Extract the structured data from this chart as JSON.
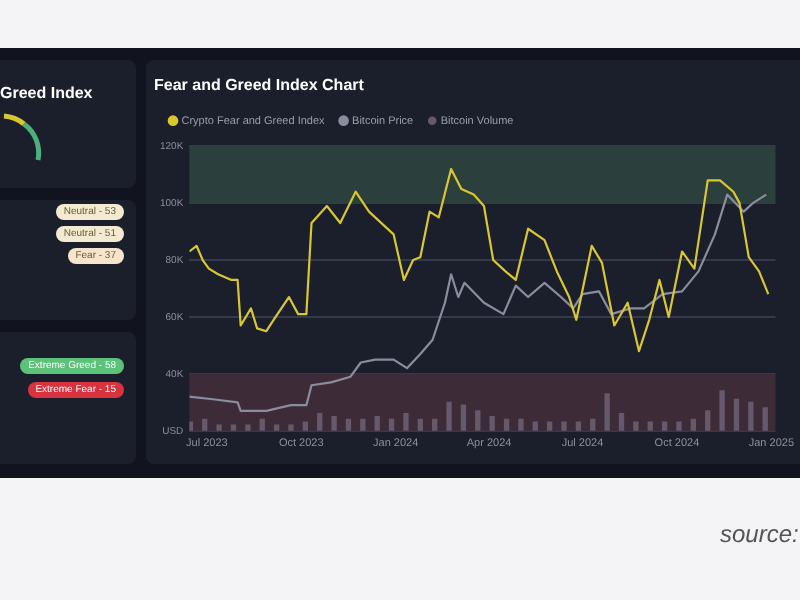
{
  "chart_data": [
    {
      "type": "other",
      "title": "Greed Index",
      "annotations": [
        "Neutral - 53",
        "Neutral - 51",
        "Fear - 37",
        "Extreme Greed - 58",
        "Extreme Fear - 15"
      ]
    },
    {
      "type": "line",
      "title": "Fear and Greed Index Chart",
      "legend": "top left",
      "grid": "y",
      "marker": "none",
      "xlim": [
        "2023-06-14",
        "2025-01-05"
      ],
      "xticks": [
        {
          "value": "2023-07-01",
          "label": "Jul 2023"
        },
        {
          "value": "2023-10-01",
          "label": "Oct 2023"
        },
        {
          "value": "2024-01-01",
          "label": "Jan 2024"
        },
        {
          "value": "2024-04-01",
          "label": "Apr 2024"
        },
        {
          "value": "2024-07-01",
          "label": "Jul 2024"
        },
        {
          "value": "2024-10-01",
          "label": "Oct 2024"
        },
        {
          "value": "2025-01-01",
          "label": "Jan 2025"
        }
      ],
      "ylim": [
        20000,
        120000
      ],
      "yticks": [
        {
          "value": 20000,
          "label": "USD"
        },
        {
          "value": 40000,
          "label": "40K"
        },
        {
          "value": 60000,
          "label": "60K"
        },
        {
          "value": 80000,
          "label": "80K"
        },
        {
          "value": 100000,
          "label": "100K"
        },
        {
          "value": 120000,
          "label": "120K"
        }
      ],
      "bands": [
        {
          "axis": "y",
          "from": 100000,
          "to": 120000,
          "color": "#2b3f3c"
        },
        {
          "axis": "y",
          "from": 20000,
          "to": 40000,
          "color": "#3d2c37"
        }
      ],
      "series": [
        {
          "name": "Crypto Fear and Greed Index",
          "type": "line",
          "color": "#d9c72f",
          "x": [
            "2023-06-14",
            "2023-06-21",
            "2023-06-27",
            "2023-07-03",
            "2023-07-12",
            "2023-07-25",
            "2023-07-31",
            "2023-08-03",
            "2023-08-13",
            "2023-08-19",
            "2023-08-28",
            "2023-09-06",
            "2023-09-19",
            "2023-09-28",
            "2023-10-06",
            "2023-10-11",
            "2023-10-26",
            "2023-11-08",
            "2023-11-23",
            "2023-12-06",
            "2023-12-21",
            "2023-12-30",
            "2024-01-09",
            "2024-01-18",
            "2024-01-25",
            "2024-02-03",
            "2024-02-12",
            "2024-02-24",
            "2024-03-05",
            "2024-03-17",
            "2024-03-27",
            "2024-04-05",
            "2024-04-17",
            "2024-04-27",
            "2024-05-09",
            "2024-05-25",
            "2024-06-06",
            "2024-06-18",
            "2024-06-25",
            "2024-07-10",
            "2024-07-20",
            "2024-08-01",
            "2024-08-14",
            "2024-08-25",
            "2024-09-04",
            "2024-09-14",
            "2024-09-23",
            "2024-10-06",
            "2024-10-18",
            "2024-10-31",
            "2024-11-12",
            "2024-11-25",
            "2024-12-01",
            "2024-12-10",
            "2024-12-20",
            "2024-12-29"
          ],
          "values": [
            83000,
            85000,
            80000,
            77000,
            75000,
            73000,
            73000,
            57000,
            63000,
            56000,
            55000,
            60000,
            67000,
            61000,
            61000,
            93000,
            99000,
            93000,
            104000,
            97000,
            92000,
            89000,
            73000,
            80000,
            81000,
            97000,
            95000,
            112000,
            105000,
            103000,
            99000,
            80000,
            76000,
            73000,
            91000,
            87000,
            76000,
            67000,
            59000,
            85000,
            79000,
            57000,
            65000,
            48000,
            59000,
            73000,
            60000,
            83000,
            77000,
            108000,
            108000,
            104000,
            100000,
            81000,
            76000,
            68000
          ]
        },
        {
          "name": "Bitcoin Price",
          "type": "line",
          "color": "#8b8c9f",
          "x": [
            "2023-06-14",
            "2023-07-09",
            "2023-07-31",
            "2023-08-03",
            "2023-08-28",
            "2023-09-21",
            "2023-10-06",
            "2023-10-11",
            "2023-10-30",
            "2023-11-18",
            "2023-11-28",
            "2023-12-12",
            "2023-12-30",
            "2024-01-12",
            "2024-01-25",
            "2024-02-06",
            "2024-02-18",
            "2024-02-24",
            "2024-03-02",
            "2024-03-08",
            "2024-03-27",
            "2024-04-15",
            "2024-04-27",
            "2024-05-09",
            "2024-05-25",
            "2024-06-10",
            "2024-06-22",
            "2024-07-01",
            "2024-07-17",
            "2024-07-29",
            "2024-08-17",
            "2024-08-30",
            "2024-09-17",
            "2024-10-06",
            "2024-10-22",
            "2024-11-07",
            "2024-11-19",
            "2024-12-05",
            "2024-12-14",
            "2024-12-27"
          ],
          "values": [
            32000,
            31000,
            30000,
            27000,
            27000,
            29000,
            29000,
            36000,
            37000,
            39000,
            44000,
            45000,
            45000,
            42000,
            47000,
            52000,
            65000,
            75000,
            67000,
            72000,
            65000,
            61000,
            71000,
            67000,
            72000,
            67000,
            63000,
            68000,
            69000,
            61000,
            63000,
            63000,
            68000,
            69000,
            76000,
            89000,
            103000,
            97000,
            100000,
            103000
          ]
        },
        {
          "name": "Bitcoin Volume",
          "type": "bar",
          "color": "#66596b",
          "x": [
            "2023-06-15",
            "2023-06-29",
            "2023-07-13",
            "2023-07-27",
            "2023-08-10",
            "2023-08-24",
            "2023-09-07",
            "2023-09-21",
            "2023-10-05",
            "2023-10-19",
            "2023-11-02",
            "2023-11-16",
            "2023-11-30",
            "2023-12-14",
            "2023-12-28",
            "2024-01-11",
            "2024-01-25",
            "2024-02-08",
            "2024-02-22",
            "2024-03-07",
            "2024-03-21",
            "2024-04-04",
            "2024-04-18",
            "2024-05-02",
            "2024-05-16",
            "2024-05-30",
            "2024-06-13",
            "2024-06-27",
            "2024-07-11",
            "2024-07-25",
            "2024-08-08",
            "2024-08-22",
            "2024-09-05",
            "2024-09-19",
            "2024-10-03",
            "2024-10-17",
            "2024-10-31",
            "2024-11-14",
            "2024-11-28",
            "2024-12-12",
            "2024-12-26"
          ],
          "values": [
            23000,
            24000,
            22000,
            22000,
            22000,
            24000,
            22000,
            22000,
            23000,
            26000,
            25000,
            24000,
            24000,
            25000,
            24000,
            26000,
            24000,
            24000,
            30000,
            29000,
            27000,
            25000,
            24000,
            24000,
            23000,
            23000,
            23000,
            23000,
            24000,
            33000,
            26000,
            23000,
            23000,
            23000,
            23000,
            24000,
            27000,
            34000,
            31000,
            30000,
            28000
          ]
        }
      ],
      "annotations": [
        "source:"
      ]
    }
  ]
}
